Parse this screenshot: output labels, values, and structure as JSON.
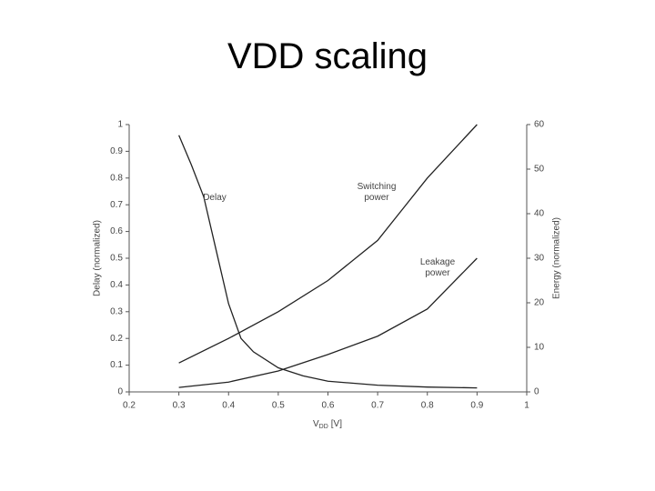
{
  "title": "VDD scaling",
  "chart_data": {
    "type": "line",
    "ylabel": "Delay (normalized)",
    "y2label": "Energy (normalized)",
    "xlabel": {
      "main": "V",
      "subscript": "DD",
      "unit": "[V]"
    },
    "xlim": [
      0.2,
      1
    ],
    "xticks": [
      0.2,
      0.3,
      0.4,
      0.5,
      0.6,
      0.7,
      0.8,
      0.9,
      1
    ],
    "ylim": [
      0,
      1
    ],
    "yticks": [
      0,
      0.1,
      0.2,
      0.3,
      0.4,
      0.5,
      0.6,
      0.7,
      0.8,
      0.9,
      1
    ],
    "y2lim": [
      0,
      60
    ],
    "y2ticks": [
      0,
      10,
      20,
      30,
      40,
      50,
      60
    ],
    "grid": false,
    "series": [
      {
        "name": "Delay",
        "color": "#222222",
        "x": [
          0.3,
          0.325,
          0.35,
          0.375,
          0.4,
          0.425,
          0.45,
          0.5,
          0.55,
          0.6,
          0.7,
          0.8,
          0.9
        ],
        "values": [
          0.96,
          0.85,
          0.73,
          0.53,
          0.33,
          0.2,
          0.15,
          0.09,
          0.06,
          0.04,
          0.025,
          0.018,
          0.015
        ]
      },
      {
        "name": "Switching power",
        "color": "#222222",
        "axis": "y2",
        "x": [
          0.3,
          0.4,
          0.5,
          0.6,
          0.7,
          0.75,
          0.8,
          0.9
        ],
        "values": [
          6.5,
          12,
          18,
          25,
          34,
          41,
          48,
          60
        ]
      },
      {
        "name": "Leakage power",
        "color": "#222222",
        "axis": "y2",
        "x": [
          0.3,
          0.4,
          0.5,
          0.6,
          0.7,
          0.8,
          0.9
        ],
        "values": [
          1,
          2.2,
          4.7,
          8.4,
          12.5,
          18.6,
          30
        ]
      }
    ]
  }
}
